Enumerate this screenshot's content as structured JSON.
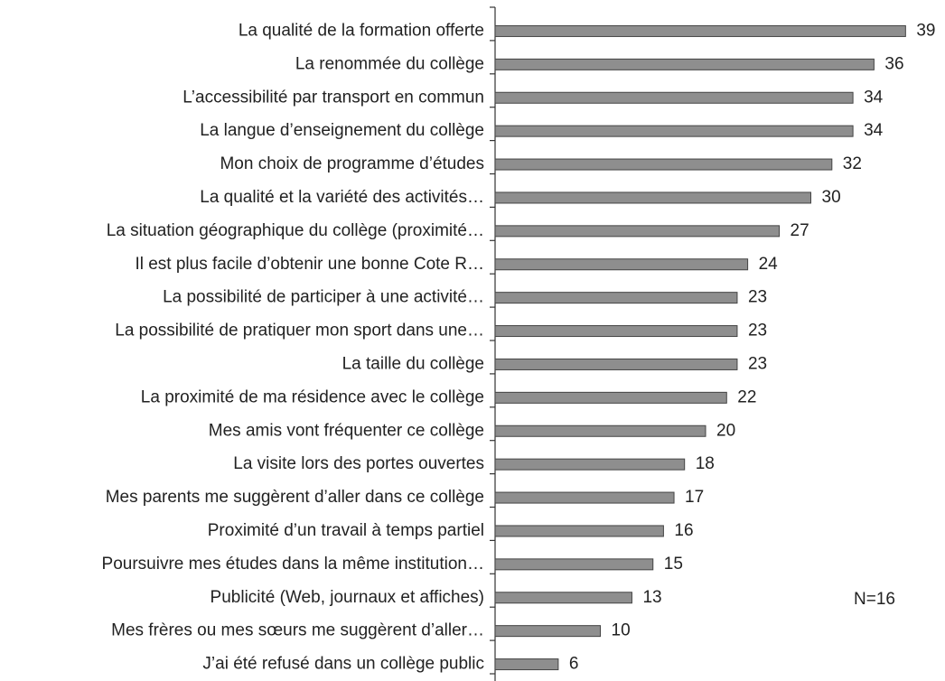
{
  "chart_data": {
    "type": "bar",
    "orientation": "horizontal",
    "categories": [
      "La qualité de la formation offerte",
      "La renommée du collège",
      "L’accessibilité par transport en commun",
      "La langue d’enseignement du collège",
      "Mon choix de programme d’études",
      "La qualité et la variété des activités…",
      "La situation géographique du collège (proximité…",
      "Il est plus facile d’obtenir une bonne Cote R…",
      "La possibilité de participer à une activité…",
      "La possibilité de pratiquer mon sport dans une…",
      "La taille du collège",
      "La proximité de ma résidence avec le collège",
      "Mes  amis vont fréquenter ce collège",
      "La visite lors des portes ouvertes",
      "Mes parents me suggèrent d’aller dans ce collège",
      "Proximité d’un travail à temps partiel",
      "Poursuivre mes études dans la même institution…",
      "Publicité (Web, journaux et affiches)",
      "Mes frères ou mes sœurs me suggèrent d’aller…",
      "J’ai été refusé dans un collège public"
    ],
    "values": [
      39,
      36,
      34,
      34,
      32,
      30,
      27,
      24,
      23,
      23,
      23,
      22,
      20,
      18,
      17,
      16,
      15,
      13,
      10,
      6
    ],
    "color": "#8e8e8e",
    "xlim": [
      0,
      40
    ],
    "annotation": "N=16"
  }
}
